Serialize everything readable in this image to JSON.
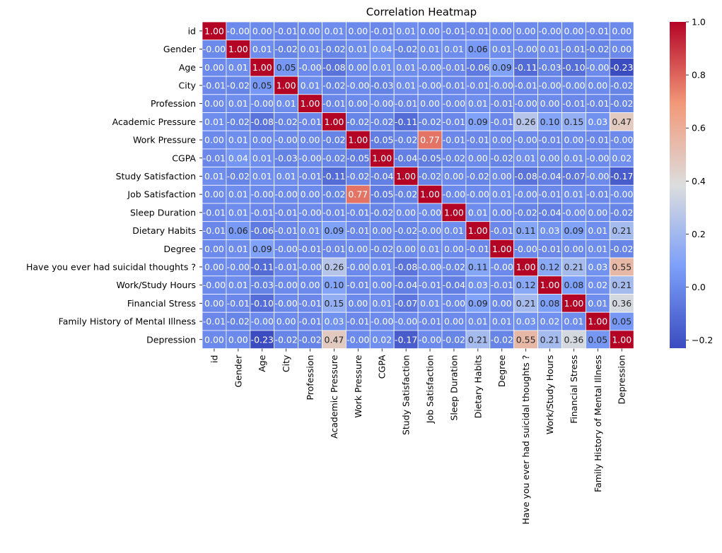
{
  "chart_data": {
    "type": "heatmap",
    "title": "Correlation Heatmap",
    "labels": [
      "id",
      "Gender",
      "Age",
      "City",
      "Profession",
      "Academic Pressure",
      "Work Pressure",
      "CGPA",
      "Study Satisfaction",
      "Job Satisfaction",
      "Sleep Duration",
      "Dietary Habits",
      "Degree",
      "Have you ever had suicidal thoughts ?",
      "Work/Study Hours",
      "Financial Stress",
      "Family History of Mental Illness",
      "Depression"
    ],
    "cell_labels": [
      [
        "1.00",
        "-0.00",
        "0.00",
        "-0.01",
        "0.00",
        "0.01",
        "0.00",
        "-0.01",
        "0.01",
        "0.00",
        "-0.01",
        "-0.01",
        "0.00",
        "0.00",
        "-0.00",
        "0.00",
        "-0.01",
        "0.00"
      ],
      [
        "-0.00",
        "1.00",
        "0.01",
        "-0.02",
        "0.01",
        "-0.02",
        "0.01",
        "0.04",
        "-0.02",
        "0.01",
        "0.01",
        "0.06",
        "0.01",
        "-0.00",
        "0.01",
        "-0.01",
        "-0.02",
        "0.00"
      ],
      [
        "0.00",
        "0.01",
        "1.00",
        "0.05",
        "-0.00",
        "-0.08",
        "0.00",
        "0.01",
        "0.01",
        "-0.00",
        "-0.01",
        "-0.06",
        "0.09",
        "-0.11",
        "-0.03",
        "-0.10",
        "-0.00",
        "-0.23"
      ],
      [
        "-0.01",
        "-0.02",
        "0.05",
        "1.00",
        "0.01",
        "-0.02",
        "-0.00",
        "-0.03",
        "0.01",
        "-0.00",
        "-0.01",
        "-0.01",
        "-0.00",
        "-0.01",
        "-0.00",
        "-0.00",
        "0.00",
        "-0.02"
      ],
      [
        "0.00",
        "0.01",
        "-0.00",
        "0.01",
        "1.00",
        "-0.01",
        "0.00",
        "-0.00",
        "-0.01",
        "0.00",
        "-0.00",
        "0.01",
        "-0.01",
        "-0.00",
        "0.00",
        "-0.01",
        "-0.01",
        "-0.02"
      ],
      [
        "0.01",
        "-0.02",
        "-0.08",
        "-0.02",
        "-0.01",
        "1.00",
        "-0.02",
        "-0.02",
        "-0.11",
        "-0.02",
        "-0.01",
        "0.09",
        "-0.01",
        "0.26",
        "0.10",
        "0.15",
        "0.03",
        "0.47"
      ],
      [
        "0.00",
        "0.01",
        "0.00",
        "-0.00",
        "0.00",
        "-0.02",
        "1.00",
        "-0.05",
        "-0.02",
        "0.77",
        "-0.01",
        "-0.01",
        "0.00",
        "-0.00",
        "-0.01",
        "0.00",
        "-0.01",
        "-0.00"
      ],
      [
        "-0.01",
        "0.04",
        "0.01",
        "-0.03",
        "-0.00",
        "-0.02",
        "-0.05",
        "1.00",
        "-0.04",
        "-0.05",
        "-0.02",
        "0.00",
        "-0.02",
        "0.01",
        "0.00",
        "0.01",
        "-0.00",
        "0.02"
      ],
      [
        "0.01",
        "-0.02",
        "0.01",
        "0.01",
        "-0.01",
        "-0.11",
        "-0.02",
        "-0.04",
        "1.00",
        "-0.02",
        "0.00",
        "-0.02",
        "0.00",
        "-0.08",
        "-0.04",
        "-0.07",
        "-0.00",
        "-0.17"
      ],
      [
        "0.00",
        "0.01",
        "-0.00",
        "-0.00",
        "0.00",
        "-0.02",
        "0.77",
        "-0.05",
        "-0.02",
        "1.00",
        "-0.00",
        "-0.00",
        "0.01",
        "-0.00",
        "-0.01",
        "0.01",
        "-0.01",
        "-0.00"
      ],
      [
        "-0.01",
        "0.01",
        "-0.01",
        "-0.01",
        "-0.00",
        "-0.01",
        "-0.01",
        "-0.02",
        "0.00",
        "-0.00",
        "1.00",
        "0.01",
        "0.00",
        "-0.02",
        "-0.04",
        "-0.00",
        "0.00",
        "-0.02"
      ],
      [
        "-0.01",
        "0.06",
        "-0.06",
        "-0.01",
        "0.01",
        "0.09",
        "-0.01",
        "0.00",
        "-0.02",
        "-0.00",
        "0.01",
        "1.00",
        "-0.01",
        "0.11",
        "0.03",
        "0.09",
        "0.01",
        "0.21"
      ],
      [
        "0.00",
        "0.01",
        "0.09",
        "-0.00",
        "-0.01",
        "-0.01",
        "0.00",
        "-0.02",
        "0.00",
        "0.01",
        "0.00",
        "-0.01",
        "1.00",
        "-0.00",
        "-0.01",
        "0.00",
        "0.01",
        "-0.02"
      ],
      [
        "0.00",
        "-0.00",
        "-0.11",
        "-0.01",
        "-0.00",
        "0.26",
        "-0.00",
        "0.01",
        "-0.08",
        "-0.00",
        "-0.02",
        "0.11",
        "-0.00",
        "1.00",
        "0.12",
        "0.21",
        "0.03",
        "0.55"
      ],
      [
        "-0.00",
        "0.01",
        "-0.03",
        "-0.00",
        "0.00",
        "0.10",
        "-0.01",
        "0.00",
        "-0.04",
        "-0.01",
        "-0.04",
        "0.03",
        "-0.01",
        "0.12",
        "1.00",
        "0.08",
        "0.02",
        "0.21"
      ],
      [
        "0.00",
        "-0.01",
        "-0.10",
        "-0.00",
        "-0.01",
        "0.15",
        "0.00",
        "0.01",
        "-0.07",
        "0.01",
        "-0.00",
        "0.09",
        "0.00",
        "0.21",
        "0.08",
        "1.00",
        "0.01",
        "0.36"
      ],
      [
        "-0.01",
        "-0.02",
        "-0.00",
        "0.00",
        "-0.01",
        "0.03",
        "-0.01",
        "-0.00",
        "-0.00",
        "-0.01",
        "0.00",
        "0.01",
        "0.01",
        "0.03",
        "0.02",
        "0.01",
        "1.00",
        "0.05"
      ],
      [
        "0.00",
        "0.00",
        "-0.23",
        "-0.02",
        "-0.02",
        "0.47",
        "-0.00",
        "0.02",
        "-0.17",
        "-0.00",
        "-0.02",
        "0.21",
        "-0.02",
        "0.55",
        "0.21",
        "0.36",
        "0.05",
        "1.00"
      ]
    ],
    "colormap": "coolwarm",
    "colorbar": {
      "range": [
        -0.23,
        1.0
      ],
      "ticks": [
        "1.0",
        "0.8",
        "0.6",
        "0.4",
        "0.2",
        "0.0",
        "−0.2"
      ]
    },
    "grid": false,
    "legend": "colorbar-right"
  }
}
